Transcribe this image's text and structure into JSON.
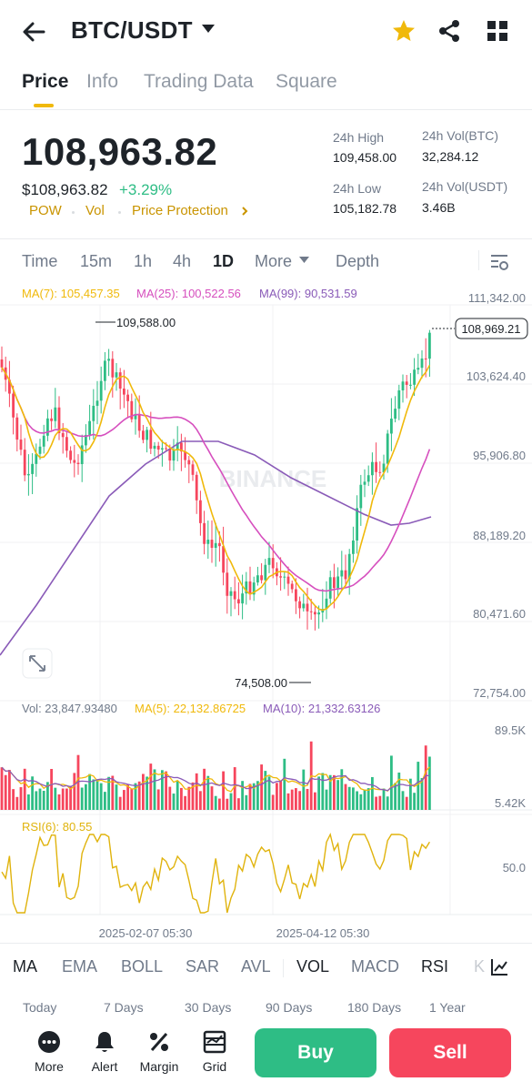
{
  "header": {
    "pair": "BTC/USDT"
  },
  "tabs": [
    {
      "label": "Price"
    },
    {
      "label": "Info"
    },
    {
      "label": "Trading Data"
    },
    {
      "label": "Square"
    }
  ],
  "price": {
    "last": "108,963.82",
    "fiat": "$108,963.82",
    "change": "+3.29%",
    "tags": [
      "POW",
      "Vol",
      "Price Protection"
    ]
  },
  "stats": {
    "high_label": "24h High",
    "high_value": "109,458.00",
    "low_label": "24h Low",
    "low_value": "105,182.78",
    "volbtc_label": "24h Vol(BTC)",
    "volbtc_value": "32,284.12",
    "volusdt_label": "24h Vol(USDT)",
    "volusdt_value": "3.46B"
  },
  "intervals": [
    "Time",
    "15m",
    "1h",
    "4h",
    "1D",
    "More",
    "Depth"
  ],
  "chart": {
    "ma7_label": "MA(7): 105,457.35",
    "ma25_label": "MA(25): 100,522.56",
    "ma99_label": "MA(99): 90,531.59",
    "price_ticks": [
      "111,342.00",
      "103,624.40",
      "95,906.80",
      "88,189.20",
      "80,471.60",
      "72,754.00"
    ],
    "current_price_tag": "108,969.21",
    "high_marker": "109,588.00",
    "low_marker": "74,508.00",
    "watermark": "BINANCE",
    "vol_label": "Vol: 23,847.93480",
    "vol_ma5_label": "MA(5): 22,132.86725",
    "vol_ma10_label": "MA(10): 21,332.63126",
    "vol_ticks": [
      "89.5K",
      "5.42K"
    ],
    "rsi_label": "RSI(6): 80.55",
    "rsi_tick": "50.0",
    "date_labels": [
      "2025-02-07 05:30",
      "2025-04-12 05:30"
    ],
    "colors": {
      "up": "#2ebd85",
      "down": "#f6465d",
      "ma7": "#f0b90b",
      "ma25": "#d64fbe",
      "ma99": "#8a5bb8",
      "rsi": "#e0b30d"
    }
  },
  "indicators": [
    "MA",
    "EMA",
    "BOLL",
    "SAR",
    "AVL",
    "VOL",
    "MACD",
    "RSI",
    "K"
  ],
  "periods": [
    "Today",
    "7 Days",
    "30 Days",
    "90 Days",
    "180 Days",
    "1 Year"
  ],
  "bottom": {
    "more": "More",
    "alert": "Alert",
    "margin": "Margin",
    "grid": "Grid",
    "buy": "Buy",
    "sell": "Sell"
  }
}
